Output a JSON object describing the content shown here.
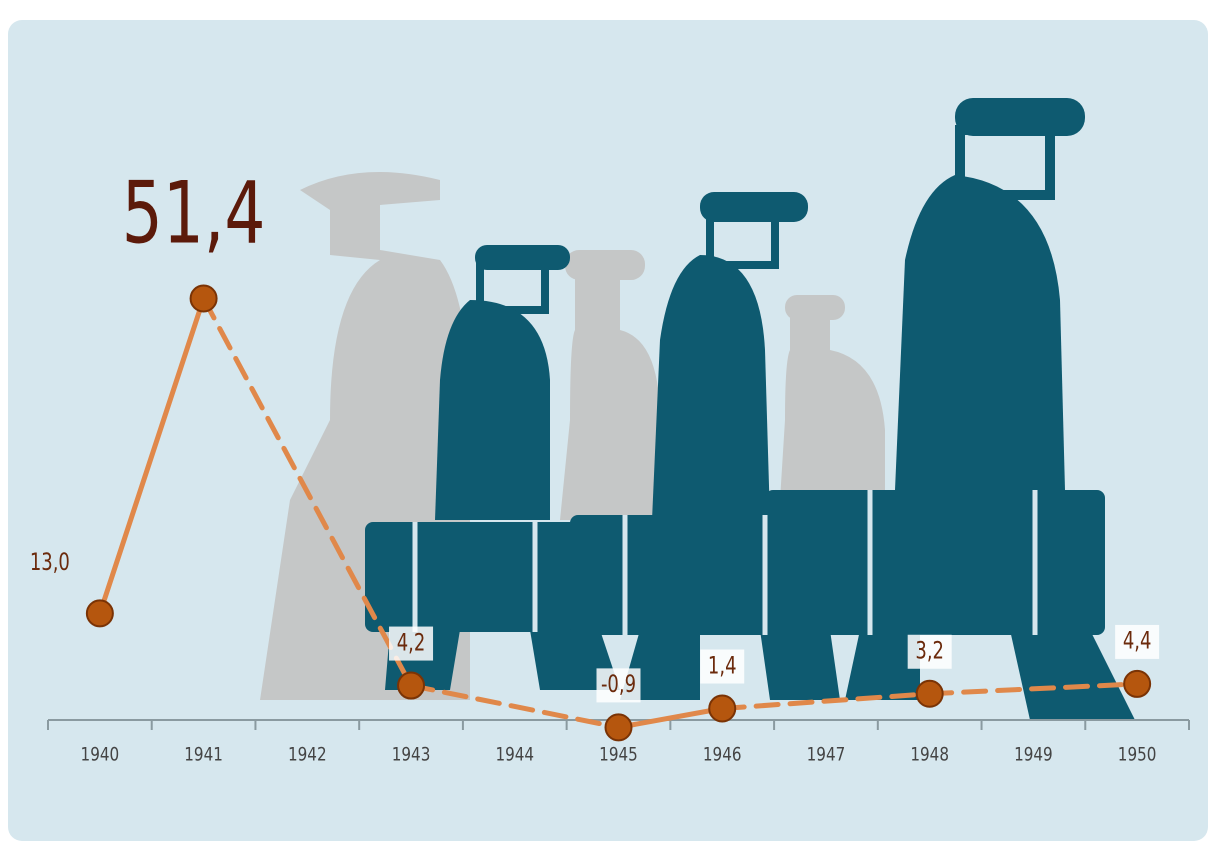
{
  "chart_data": {
    "type": "line",
    "x": [
      1940,
      1941,
      1943,
      1945,
      1946,
      1948,
      1950
    ],
    "series": [
      {
        "color": "#e0884a",
        "values": [
          13.0,
          51.4,
          4.2,
          -0.9,
          1.4,
          3.2,
          4.4
        ],
        "value_labels": [
          "13,0",
          "51,4",
          "4,2",
          "-0,9",
          "1,4",
          "3,2",
          "4,4"
        ]
      }
    ],
    "xlim": [
      1939.5,
      1950.5
    ],
    "xticks": [
      1940,
      1941,
      1942,
      1943,
      1944,
      1945,
      1946,
      1947,
      1948,
      1949,
      1950
    ],
    "ylim": [
      -10,
      85
    ]
  }
}
